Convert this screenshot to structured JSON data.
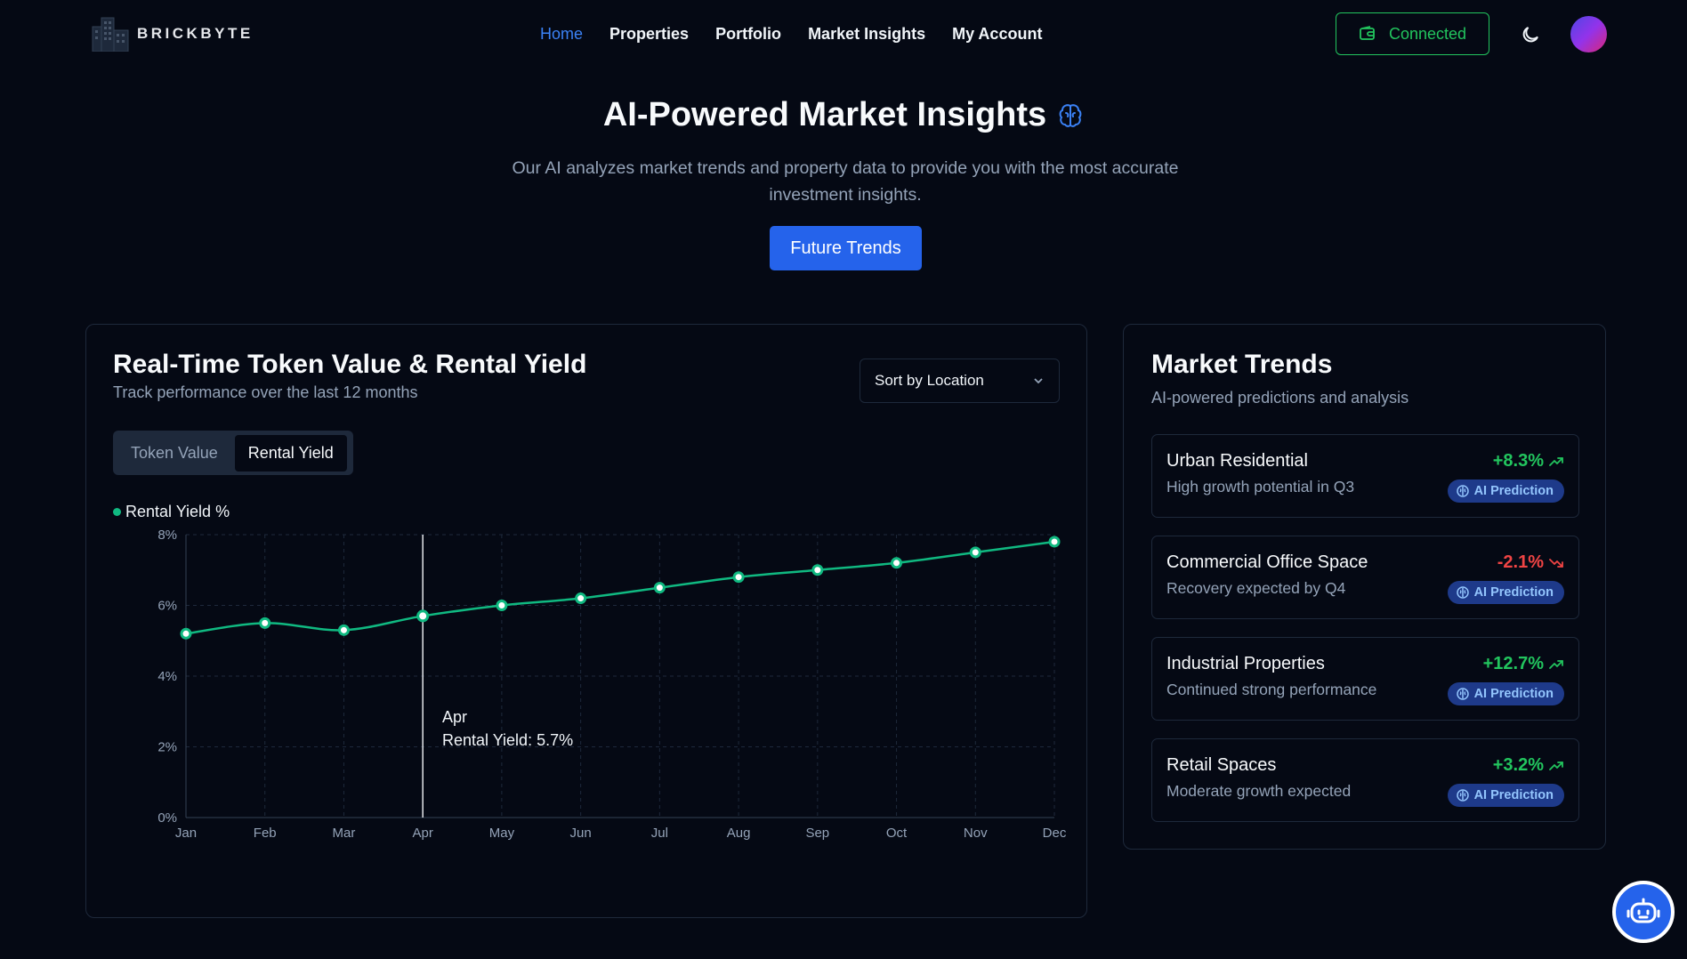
{
  "brand": {
    "name": "BRICKBYTE",
    "logo_icon": "building-icon"
  },
  "nav": {
    "items": [
      {
        "label": "Home",
        "active": true
      },
      {
        "label": "Properties"
      },
      {
        "label": "Portfolio"
      },
      {
        "label": "Market Insights"
      },
      {
        "label": "My Account"
      }
    ]
  },
  "header": {
    "wallet_status": "Connected",
    "wallet_icon": "wallet-icon",
    "theme_icon": "moon-icon",
    "accent_color": "#22c55e"
  },
  "hero": {
    "title": "AI-Powered Market Insights",
    "title_icon": "brain-icon",
    "subtitle": "Our AI analyzes market trends and property data to provide you with the most accurate investment insights.",
    "cta_label": "Future Trends"
  },
  "chart_card": {
    "title": "Real-Time Token Value & Rental Yield",
    "subtitle": "Track performance over the last 12 months",
    "sort_label": "Sort by Location",
    "toggle": [
      {
        "label": "Token Value",
        "active": false
      },
      {
        "label": "Rental Yield",
        "active": true
      }
    ],
    "tooltip": {
      "month": "Apr",
      "text": "Rental Yield: 5.7%"
    }
  },
  "chart_data": {
    "type": "line",
    "x": [
      "Jan",
      "Feb",
      "Mar",
      "Apr",
      "May",
      "Jun",
      "Jul",
      "Aug",
      "Sep",
      "Oct",
      "Nov",
      "Dec"
    ],
    "series": [
      {
        "name": "Rental Yield %",
        "values": [
          5.2,
          5.5,
          5.3,
          5.7,
          6.0,
          6.2,
          6.5,
          6.8,
          7.0,
          7.2,
          7.5,
          7.8
        ]
      }
    ],
    "ylim": [
      0,
      8
    ],
    "yticks": [
      "0%",
      "2%",
      "4%",
      "6%",
      "8%"
    ],
    "grid": true,
    "legend": "top-left",
    "line_color": "#10b981",
    "highlight_index": 3
  },
  "trends": {
    "title": "Market Trends",
    "subtitle": "AI-powered predictions and analysis",
    "badge_label": "AI Prediction",
    "items": [
      {
        "name": "Urban Residential",
        "desc": "High growth potential in Q3",
        "change": "+8.3%",
        "direction": "up"
      },
      {
        "name": "Commercial Office Space",
        "desc": "Recovery expected by Q4",
        "change": "-2.1%",
        "direction": "down"
      },
      {
        "name": "Industrial Properties",
        "desc": "Continued strong performance",
        "change": "+12.7%",
        "direction": "up"
      },
      {
        "name": "Retail Spaces",
        "desc": "Moderate growth expected",
        "change": "+3.2%",
        "direction": "up"
      }
    ]
  },
  "chatbot": {
    "icon": "robot-icon"
  }
}
